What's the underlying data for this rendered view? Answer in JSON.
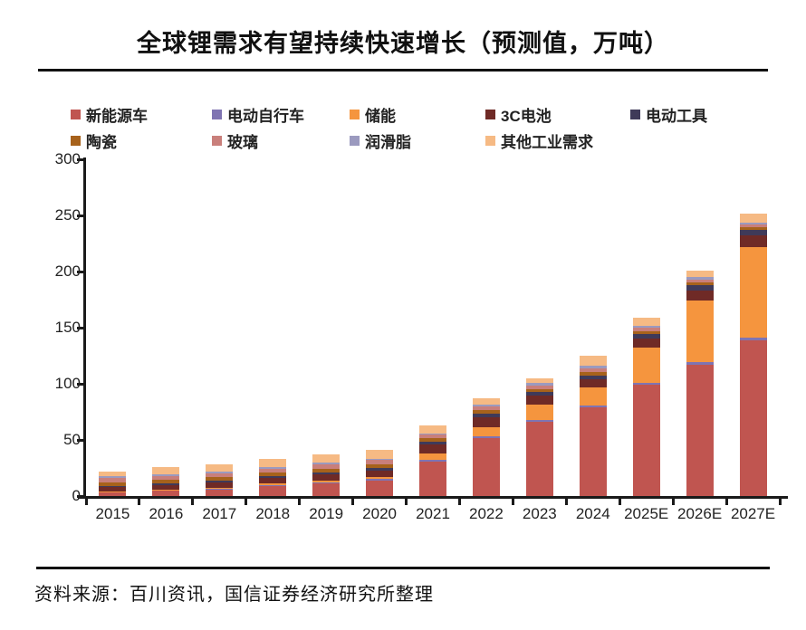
{
  "title": "全球锂需求有望持续快速增长（预测值，万吨）",
  "source": "资料来源：百川资讯，国信证券经济研究所整理",
  "colors": {
    "axis": "#1a1a1a",
    "nev_red": "#C05550",
    "ebike_purple": "#7F74B2",
    "storage_orange": "#F5953E",
    "battery3c_maroon": "#6F2A26",
    "tools_navy": "#3F3A59",
    "ceramics_brown": "#A7621B",
    "glass_rose": "#C97F7B",
    "grease_lilac": "#9B9ABF",
    "other_peach": "#F6BA84"
  },
  "chart_data": {
    "type": "bar",
    "stacked": true,
    "title": "全球锂需求有望持续快速增长（预测值，万吨）",
    "xlabel": "",
    "ylabel": "",
    "ylim": [
      0,
      300
    ],
    "yticks": [
      0,
      50,
      100,
      150,
      200,
      250,
      300
    ],
    "grid": false,
    "legend_position": "top",
    "categories": [
      "2015",
      "2016",
      "2017",
      "2018",
      "2019",
      "2020",
      "2021",
      "2022",
      "2023",
      "2024",
      "2025E",
      "2026E",
      "2027E"
    ],
    "totals": [
      22,
      26,
      28,
      33,
      37,
      41,
      63,
      87,
      105,
      125,
      159,
      201,
      252
    ],
    "series": [
      {
        "name": "新能源车",
        "color": "#C05550",
        "values": [
          3,
          4.5,
          6,
          9,
          11,
          14,
          31,
          52,
          66,
          79,
          99,
          117,
          139
        ]
      },
      {
        "name": "电动自行车",
        "color": "#7F74B2",
        "values": [
          0.5,
          0.5,
          0.5,
          1,
          1,
          1,
          1,
          1.5,
          1.5,
          2,
          2,
          2,
          2
        ]
      },
      {
        "name": "储能",
        "color": "#F5953E",
        "values": [
          0.5,
          0.5,
          1,
          1,
          1.5,
          2,
          6,
          8,
          14,
          16,
          31,
          55,
          81
        ]
      },
      {
        "name": "3C电池",
        "color": "#6F2A26",
        "values": [
          4,
          4.5,
          4.5,
          5,
          5.5,
          6,
          8,
          9,
          8,
          7,
          8,
          9,
          10
        ]
      },
      {
        "name": "电动工具",
        "color": "#3F3A59",
        "values": [
          1,
          1,
          1.5,
          1.5,
          2,
          2,
          2.5,
          3,
          3,
          3,
          4,
          5,
          5
        ]
      },
      {
        "name": "陶瓷",
        "color": "#A7621B",
        "values": [
          3.5,
          3.5,
          3.5,
          3.5,
          3.5,
          3.5,
          3,
          3,
          3,
          3.5,
          3,
          2.5,
          2.5
        ]
      },
      {
        "name": "玻璃",
        "color": "#C97F7B",
        "values": [
          3.5,
          3.5,
          3.5,
          3.5,
          3.5,
          3.5,
          3,
          3,
          3,
          3,
          3,
          2.5,
          2.5
        ]
      },
      {
        "name": "润滑脂",
        "color": "#9B9ABF",
        "values": [
          1.5,
          1.5,
          1.5,
          1.5,
          1.5,
          1.5,
          1.5,
          2,
          2,
          3,
          2,
          2,
          2
        ]
      },
      {
        "name": "其他工业需求",
        "color": "#F6BA84",
        "values": [
          4.5,
          6.5,
          6,
          7,
          7.5,
          7.5,
          7,
          5.5,
          4.5,
          8.5,
          7,
          6,
          8
        ]
      }
    ]
  }
}
